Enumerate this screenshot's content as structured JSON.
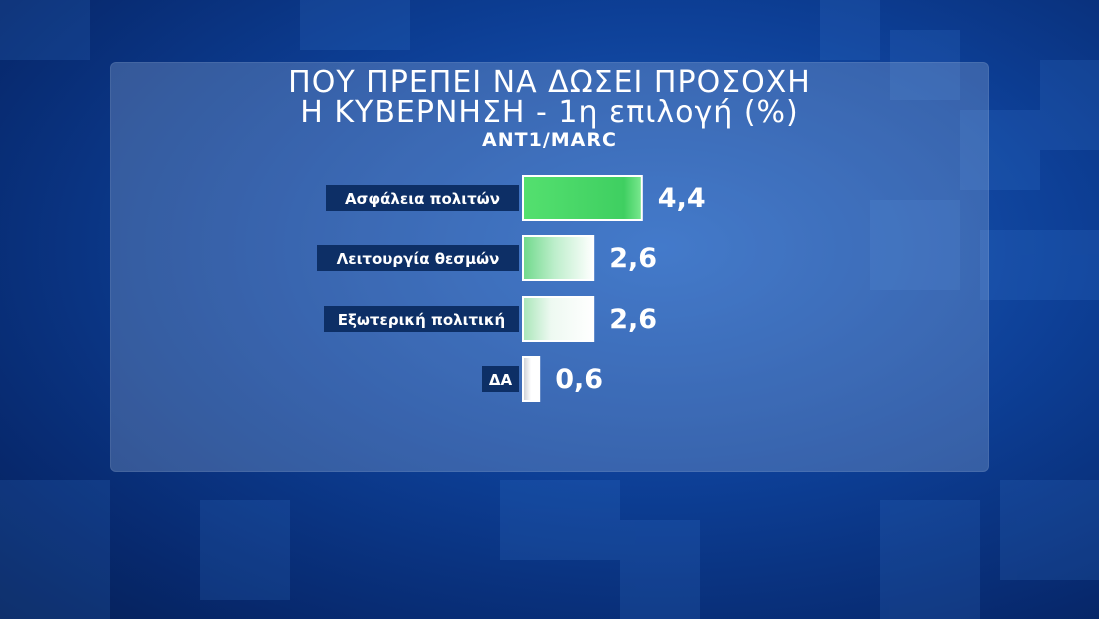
{
  "title_line1": "ΠΟΥ ΠΡΕΠΕΙ ΝΑ ΔΩΣΕΙ ΠΡΟΣΟΧΗ",
  "title_line2": "Η ΚΥΒΕΡΝΗΣΗ - 1η επιλογή (%)",
  "source": "ANT1/MARC",
  "colors": {
    "label_bg": "#0d2f66",
    "bar_top": "#4cd96a",
    "bar_white": "#ffffff"
  },
  "chart_data": {
    "type": "bar",
    "orientation": "horizontal",
    "title": "ΠΟΥ ΠΡΕΠΕΙ ΝΑ ΔΩΣΕΙ ΠΡΟΣΟΧΗ Η ΚΥΒΕΡΝΗΣΗ - 1η επιλογή (%)",
    "categories": [
      "Ασφάλεια πολιτών",
      "Λειτουργία θεσμών",
      "Εξωτερική πολιτική",
      "ΔΑ"
    ],
    "values": [
      4.4,
      2.6,
      2.6,
      0.6
    ],
    "value_labels": [
      "4,4",
      "2,6",
      "2,6",
      "0,6"
    ],
    "grid": false,
    "legend": "none"
  }
}
